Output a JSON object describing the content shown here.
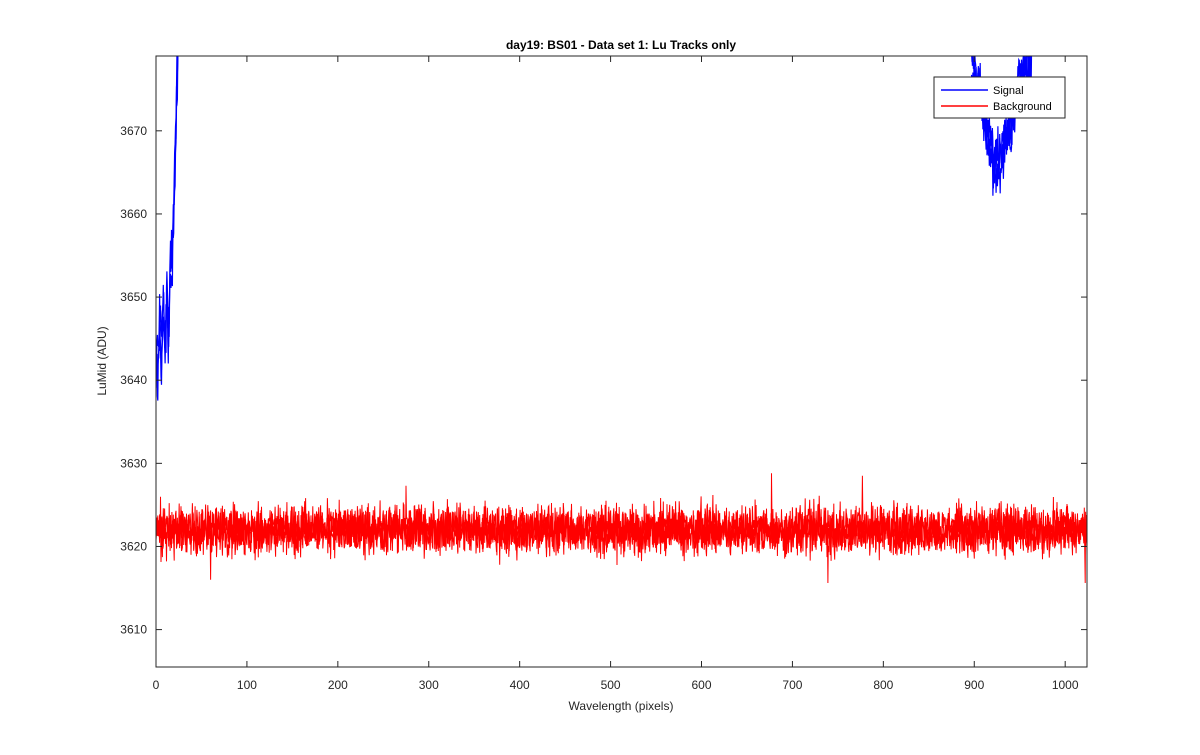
{
  "chart_data": {
    "type": "line",
    "title": "day19: BS01 - Data set 1: Lu Tracks only",
    "xlabel": "Wavelength (pixels)",
    "ylabel": "LuMid (ADU)",
    "xlim": [
      0,
      1024
    ],
    "ylim": [
      3605.5,
      3679
    ],
    "x_ticks": [
      0,
      100,
      200,
      300,
      400,
      500,
      600,
      700,
      800,
      900,
      1000
    ],
    "y_ticks": [
      3610,
      3620,
      3630,
      3640,
      3650,
      3660,
      3670
    ],
    "grid": false,
    "legend_position": "top-right",
    "series": [
      {
        "name": "Signal",
        "color": "#0000ff",
        "trace_count": 3,
        "segments": [
          {
            "x": [
              0,
              2,
              4,
              6,
              8,
              10,
              12,
              14,
              16,
              18,
              20,
              22,
              23,
              24
            ],
            "y": [
              3644,
              3641,
              3647,
              3642,
              3650,
              3643,
              3651,
              3646,
              3654,
              3656,
              3662,
              3672,
              3676,
              3679
            ]
          },
          {
            "x": [
              897,
              900,
              904,
              908,
              912,
              916,
              920,
              924,
              928,
              932,
              936,
              940,
              944,
              948,
              952,
              956,
              960,
              963
            ],
            "y": [
              3679,
              3677,
              3675,
              3674,
              3671,
              3669,
              3667,
              3666,
              3666,
              3668,
              3670,
              3671,
              3673,
              3675,
              3676,
              3677,
              3678,
              3679
            ]
          }
        ]
      },
      {
        "name": "Background",
        "color": "#ff0000",
        "trace_count": 3,
        "mean": 3622,
        "noise_sd": 1.4,
        "x_start": 0,
        "x_end": 1024,
        "x_step": 0.5,
        "spikes": [
          {
            "x": 60,
            "y": 3616
          },
          {
            "x": 275,
            "y": 3627.3
          },
          {
            "x": 378,
            "y": 3617.8
          },
          {
            "x": 677,
            "y": 3628.8
          },
          {
            "x": 739,
            "y": 3615.6
          },
          {
            "x": 777,
            "y": 3628.5
          },
          {
            "x": 1022,
            "y": 3615.6
          }
        ]
      }
    ]
  }
}
